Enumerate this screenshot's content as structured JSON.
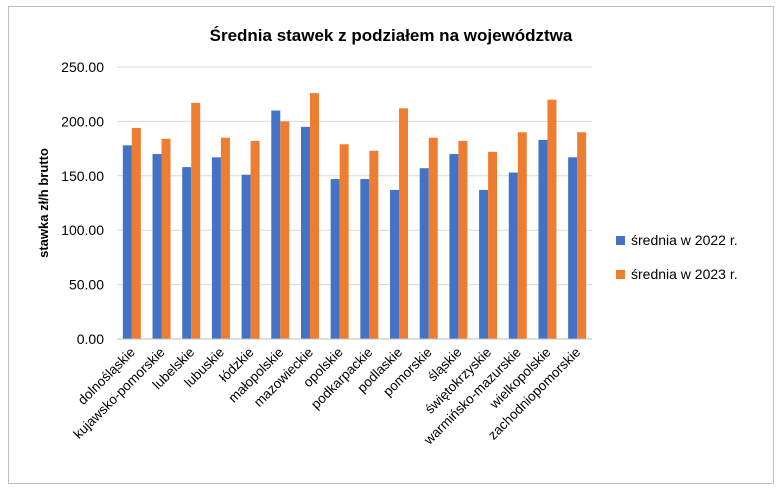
{
  "chart_data": {
    "type": "bar",
    "title": "Średnia stawek z podziałem na województwa",
    "xlabel": "",
    "ylabel": "stawka zł/h brutto",
    "ylim": [
      0,
      250
    ],
    "yticks": [
      "0.00",
      "50.00",
      "100.00",
      "150.00",
      "200.00",
      "250.00"
    ],
    "grid": true,
    "legend_position": "right",
    "categories": [
      "dolnośląskie",
      "kujawsko-pomorskie",
      "lubelskie",
      "lubuskie",
      "łódzkie",
      "małopolskie",
      "mazowieckie",
      "opolskie",
      "podkarpackie",
      "podlaskie",
      "pomorskie",
      "śląskie",
      "świętokrzyskie",
      "warmińsko-mazurskie",
      "wielkopolskie",
      "zachodniopomorskie"
    ],
    "series": [
      {
        "name": "średnia w 2022 r.",
        "color": "#4472c4",
        "values": [
          178,
          170,
          158,
          167,
          151,
          210,
          195,
          147,
          147,
          137,
          157,
          170,
          137,
          153,
          183,
          167
        ]
      },
      {
        "name": "średnia w 2023 r.",
        "color": "#ed7d31",
        "values": [
          194,
          184,
          217,
          185,
          182,
          200,
          226,
          179,
          173,
          212,
          185,
          182,
          172,
          190,
          220,
          190
        ]
      }
    ]
  }
}
